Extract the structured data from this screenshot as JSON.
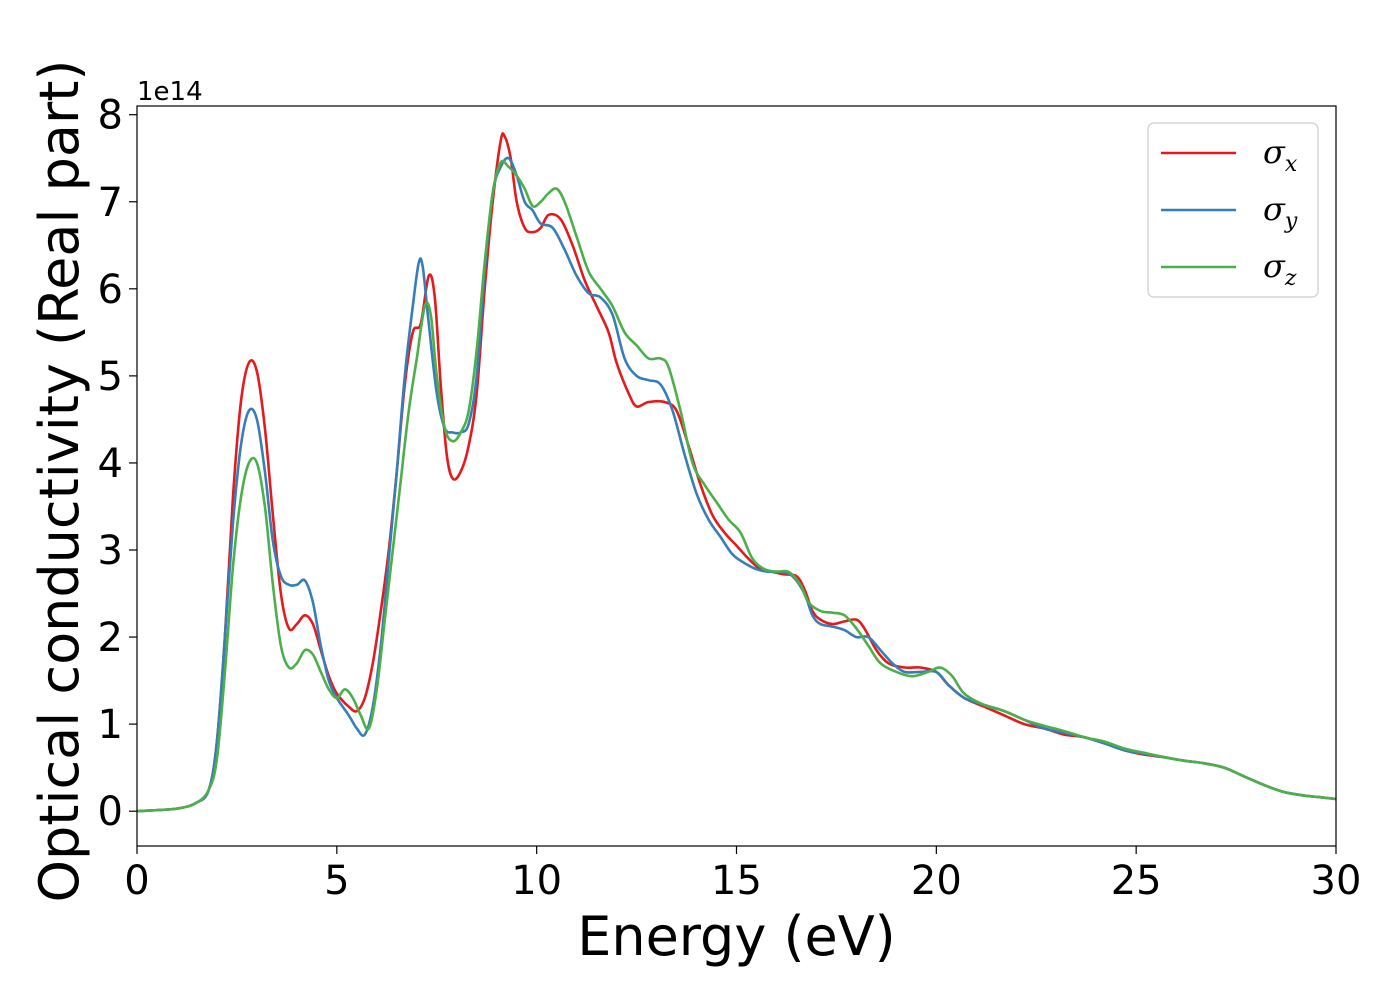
{
  "chart_data": {
    "type": "line",
    "xlabel": "Energy (eV)",
    "ylabel": "Optical conductivity (Real part)",
    "y_offset_text": "1e14",
    "y_scale": 100000000000000.0,
    "xlim": [
      0,
      30
    ],
    "ylim": [
      -0.4,
      8.1
    ],
    "x_ticks": [
      0,
      5,
      10,
      15,
      20,
      25,
      30
    ],
    "x_tick_labels": [
      "0",
      "5",
      "10",
      "15",
      "20",
      "25",
      "30"
    ],
    "y_ticks": [
      0,
      1,
      2,
      3,
      4,
      5,
      6,
      7,
      8
    ],
    "y_tick_labels": [
      "0",
      "1",
      "2",
      "3",
      "4",
      "5",
      "6",
      "7",
      "8"
    ],
    "grid": false,
    "legend_position": "top-right",
    "series": [
      {
        "name": "σ",
        "subscript": "x",
        "color": "#e41a1c",
        "points": [
          [
            0,
            0
          ],
          [
            1,
            0.03
          ],
          [
            1.5,
            0.1
          ],
          [
            1.8,
            0.25
          ],
          [
            2.0,
            0.8
          ],
          [
            2.2,
            2.0
          ],
          [
            2.4,
            3.6
          ],
          [
            2.6,
            4.7
          ],
          [
            2.8,
            5.15
          ],
          [
            3.0,
            5.05
          ],
          [
            3.2,
            4.4
          ],
          [
            3.4,
            3.4
          ],
          [
            3.6,
            2.5
          ],
          [
            3.8,
            2.1
          ],
          [
            4.0,
            2.15
          ],
          [
            4.2,
            2.25
          ],
          [
            4.4,
            2.15
          ],
          [
            4.6,
            1.85
          ],
          [
            4.8,
            1.55
          ],
          [
            5.0,
            1.35
          ],
          [
            5.3,
            1.2
          ],
          [
            5.5,
            1.15
          ],
          [
            5.7,
            1.3
          ],
          [
            5.9,
            1.7
          ],
          [
            6.1,
            2.3
          ],
          [
            6.3,
            3.0
          ],
          [
            6.5,
            3.9
          ],
          [
            6.7,
            4.9
          ],
          [
            6.9,
            5.5
          ],
          [
            7.1,
            5.6
          ],
          [
            7.3,
            6.15
          ],
          [
            7.45,
            5.9
          ],
          [
            7.6,
            4.9
          ],
          [
            7.75,
            4.1
          ],
          [
            7.9,
            3.82
          ],
          [
            8.1,
            3.9
          ],
          [
            8.3,
            4.2
          ],
          [
            8.5,
            4.8
          ],
          [
            8.7,
            6.0
          ],
          [
            8.9,
            7.0
          ],
          [
            9.1,
            7.7
          ],
          [
            9.2,
            7.75
          ],
          [
            9.35,
            7.5
          ],
          [
            9.5,
            7.0
          ],
          [
            9.7,
            6.7
          ],
          [
            9.9,
            6.65
          ],
          [
            10.1,
            6.7
          ],
          [
            10.3,
            6.85
          ],
          [
            10.6,
            6.8
          ],
          [
            10.9,
            6.5
          ],
          [
            11.2,
            6.1
          ],
          [
            11.5,
            5.8
          ],
          [
            11.8,
            5.5
          ],
          [
            12.0,
            5.15
          ],
          [
            12.3,
            4.8
          ],
          [
            12.5,
            4.65
          ],
          [
            12.8,
            4.7
          ],
          [
            13.2,
            4.7
          ],
          [
            13.5,
            4.6
          ],
          [
            13.8,
            4.2
          ],
          [
            14.1,
            3.75
          ],
          [
            14.4,
            3.4
          ],
          [
            14.7,
            3.2
          ],
          [
            15.0,
            3.05
          ],
          [
            15.3,
            2.9
          ],
          [
            15.6,
            2.78
          ],
          [
            15.9,
            2.75
          ],
          [
            16.2,
            2.72
          ],
          [
            16.5,
            2.7
          ],
          [
            16.7,
            2.55
          ],
          [
            16.9,
            2.3
          ],
          [
            17.1,
            2.2
          ],
          [
            17.4,
            2.15
          ],
          [
            17.7,
            2.18
          ],
          [
            18.0,
            2.2
          ],
          [
            18.2,
            2.1
          ],
          [
            18.5,
            1.85
          ],
          [
            18.8,
            1.7
          ],
          [
            19.2,
            1.65
          ],
          [
            19.6,
            1.65
          ],
          [
            20.0,
            1.6
          ],
          [
            20.3,
            1.45
          ],
          [
            20.7,
            1.3
          ],
          [
            21.2,
            1.2
          ],
          [
            21.7,
            1.1
          ],
          [
            22.2,
            1.0
          ],
          [
            22.7,
            0.95
          ],
          [
            23.2,
            0.88
          ],
          [
            23.7,
            0.85
          ],
          [
            24.2,
            0.78
          ],
          [
            24.7,
            0.7
          ],
          [
            25.2,
            0.65
          ],
          [
            25.7,
            0.62
          ],
          [
            26.2,
            0.58
          ],
          [
            26.7,
            0.55
          ],
          [
            27.2,
            0.5
          ],
          [
            27.7,
            0.4
          ],
          [
            28.2,
            0.3
          ],
          [
            28.7,
            0.22
          ],
          [
            29.2,
            0.18
          ],
          [
            29.6,
            0.16
          ],
          [
            30,
            0.14
          ]
        ]
      },
      {
        "name": "σ",
        "subscript": "y",
        "color": "#377eb8",
        "points": [
          [
            0,
            0
          ],
          [
            1,
            0.03
          ],
          [
            1.5,
            0.1
          ],
          [
            1.8,
            0.25
          ],
          [
            2.0,
            0.8
          ],
          [
            2.2,
            2.0
          ],
          [
            2.4,
            3.3
          ],
          [
            2.6,
            4.2
          ],
          [
            2.8,
            4.6
          ],
          [
            3.0,
            4.5
          ],
          [
            3.2,
            3.9
          ],
          [
            3.4,
            3.1
          ],
          [
            3.6,
            2.7
          ],
          [
            3.8,
            2.6
          ],
          [
            4.0,
            2.6
          ],
          [
            4.2,
            2.65
          ],
          [
            4.4,
            2.4
          ],
          [
            4.6,
            1.9
          ],
          [
            4.8,
            1.5
          ],
          [
            5.0,
            1.3
          ],
          [
            5.3,
            1.1
          ],
          [
            5.5,
            0.95
          ],
          [
            5.7,
            0.88
          ],
          [
            5.9,
            1.2
          ],
          [
            6.1,
            1.9
          ],
          [
            6.3,
            2.9
          ],
          [
            6.5,
            3.9
          ],
          [
            6.7,
            5.0
          ],
          [
            6.9,
            5.8
          ],
          [
            7.05,
            6.3
          ],
          [
            7.15,
            6.25
          ],
          [
            7.3,
            5.6
          ],
          [
            7.5,
            4.8
          ],
          [
            7.7,
            4.4
          ],
          [
            7.9,
            4.35
          ],
          [
            8.1,
            4.35
          ],
          [
            8.3,
            4.45
          ],
          [
            8.5,
            5.0
          ],
          [
            8.7,
            6.2
          ],
          [
            8.9,
            7.1
          ],
          [
            9.1,
            7.4
          ],
          [
            9.3,
            7.5
          ],
          [
            9.5,
            7.3
          ],
          [
            9.7,
            7.0
          ],
          [
            9.9,
            6.9
          ],
          [
            10.1,
            6.75
          ],
          [
            10.4,
            6.7
          ],
          [
            10.7,
            6.45
          ],
          [
            11.0,
            6.15
          ],
          [
            11.3,
            5.95
          ],
          [
            11.6,
            5.9
          ],
          [
            11.9,
            5.7
          ],
          [
            12.2,
            5.2
          ],
          [
            12.5,
            5.0
          ],
          [
            12.8,
            4.95
          ],
          [
            13.1,
            4.9
          ],
          [
            13.4,
            4.6
          ],
          [
            13.7,
            4.1
          ],
          [
            14.0,
            3.65
          ],
          [
            14.3,
            3.35
          ],
          [
            14.6,
            3.15
          ],
          [
            14.9,
            2.95
          ],
          [
            15.2,
            2.85
          ],
          [
            15.5,
            2.78
          ],
          [
            15.8,
            2.75
          ],
          [
            16.1,
            2.75
          ],
          [
            16.4,
            2.7
          ],
          [
            16.7,
            2.5
          ],
          [
            16.9,
            2.25
          ],
          [
            17.1,
            2.15
          ],
          [
            17.4,
            2.12
          ],
          [
            17.7,
            2.08
          ],
          [
            18.0,
            2.0
          ],
          [
            18.3,
            2.0
          ],
          [
            18.6,
            1.85
          ],
          [
            18.9,
            1.7
          ],
          [
            19.2,
            1.6
          ],
          [
            19.6,
            1.6
          ],
          [
            20.0,
            1.6
          ],
          [
            20.3,
            1.45
          ],
          [
            20.7,
            1.3
          ],
          [
            21.2,
            1.22
          ],
          [
            21.7,
            1.15
          ],
          [
            22.2,
            1.05
          ],
          [
            22.7,
            0.95
          ],
          [
            23.2,
            0.9
          ],
          [
            23.7,
            0.85
          ],
          [
            24.2,
            0.78
          ],
          [
            24.7,
            0.7
          ],
          [
            25.2,
            0.66
          ],
          [
            25.7,
            0.62
          ],
          [
            26.2,
            0.58
          ],
          [
            26.7,
            0.55
          ],
          [
            27.2,
            0.5
          ],
          [
            27.7,
            0.4
          ],
          [
            28.2,
            0.3
          ],
          [
            28.7,
            0.22
          ],
          [
            29.2,
            0.18
          ],
          [
            29.6,
            0.16
          ],
          [
            30,
            0.14
          ]
        ]
      },
      {
        "name": "σ",
        "subscript": "z",
        "color": "#4daf4a",
        "points": [
          [
            0,
            0
          ],
          [
            1,
            0.03
          ],
          [
            1.5,
            0.1
          ],
          [
            1.8,
            0.25
          ],
          [
            2.0,
            0.6
          ],
          [
            2.2,
            1.6
          ],
          [
            2.4,
            2.8
          ],
          [
            2.6,
            3.6
          ],
          [
            2.8,
            4.0
          ],
          [
            3.0,
            4.0
          ],
          [
            3.2,
            3.5
          ],
          [
            3.4,
            2.6
          ],
          [
            3.6,
            1.9
          ],
          [
            3.8,
            1.65
          ],
          [
            4.0,
            1.7
          ],
          [
            4.2,
            1.85
          ],
          [
            4.4,
            1.8
          ],
          [
            4.6,
            1.6
          ],
          [
            4.8,
            1.4
          ],
          [
            5.0,
            1.3
          ],
          [
            5.2,
            1.4
          ],
          [
            5.4,
            1.3
          ],
          [
            5.6,
            1.1
          ],
          [
            5.8,
            0.95
          ],
          [
            6.0,
            1.4
          ],
          [
            6.2,
            2.2
          ],
          [
            6.4,
            3.0
          ],
          [
            6.6,
            3.8
          ],
          [
            6.8,
            4.6
          ],
          [
            7.0,
            5.2
          ],
          [
            7.2,
            5.8
          ],
          [
            7.35,
            5.7
          ],
          [
            7.5,
            5.0
          ],
          [
            7.7,
            4.4
          ],
          [
            7.9,
            4.25
          ],
          [
            8.1,
            4.35
          ],
          [
            8.3,
            4.6
          ],
          [
            8.5,
            5.3
          ],
          [
            8.7,
            6.3
          ],
          [
            8.9,
            7.1
          ],
          [
            9.1,
            7.45
          ],
          [
            9.3,
            7.4
          ],
          [
            9.5,
            7.3
          ],
          [
            9.7,
            7.15
          ],
          [
            9.9,
            6.95
          ],
          [
            10.1,
            7.0
          ],
          [
            10.3,
            7.1
          ],
          [
            10.5,
            7.15
          ],
          [
            10.7,
            7.0
          ],
          [
            11.0,
            6.6
          ],
          [
            11.3,
            6.2
          ],
          [
            11.6,
            6.0
          ],
          [
            11.9,
            5.8
          ],
          [
            12.2,
            5.5
          ],
          [
            12.5,
            5.35
          ],
          [
            12.8,
            5.2
          ],
          [
            13.1,
            5.2
          ],
          [
            13.3,
            5.1
          ],
          [
            13.6,
            4.6
          ],
          [
            13.9,
            4.0
          ],
          [
            14.2,
            3.75
          ],
          [
            14.5,
            3.55
          ],
          [
            14.8,
            3.35
          ],
          [
            15.1,
            3.2
          ],
          [
            15.4,
            2.9
          ],
          [
            15.7,
            2.78
          ],
          [
            16.0,
            2.75
          ],
          [
            16.3,
            2.75
          ],
          [
            16.6,
            2.6
          ],
          [
            16.8,
            2.4
          ],
          [
            17.1,
            2.3
          ],
          [
            17.4,
            2.28
          ],
          [
            17.7,
            2.25
          ],
          [
            18.0,
            2.1
          ],
          [
            18.3,
            1.9
          ],
          [
            18.6,
            1.7
          ],
          [
            19.0,
            1.6
          ],
          [
            19.4,
            1.55
          ],
          [
            19.8,
            1.6
          ],
          [
            20.1,
            1.65
          ],
          [
            20.4,
            1.55
          ],
          [
            20.7,
            1.35
          ],
          [
            21.2,
            1.22
          ],
          [
            21.7,
            1.15
          ],
          [
            22.2,
            1.05
          ],
          [
            22.7,
            0.98
          ],
          [
            23.2,
            0.92
          ],
          [
            23.7,
            0.85
          ],
          [
            24.2,
            0.8
          ],
          [
            24.7,
            0.72
          ],
          [
            25.2,
            0.67
          ],
          [
            25.7,
            0.62
          ],
          [
            26.2,
            0.58
          ],
          [
            26.7,
            0.55
          ],
          [
            27.2,
            0.5
          ],
          [
            27.7,
            0.4
          ],
          [
            28.2,
            0.3
          ],
          [
            28.7,
            0.22
          ],
          [
            29.2,
            0.18
          ],
          [
            29.6,
            0.16
          ],
          [
            30,
            0.14
          ]
        ]
      }
    ]
  }
}
